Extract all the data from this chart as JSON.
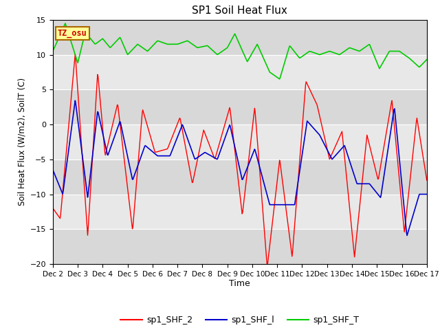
{
  "title": "SP1 Soil Heat Flux",
  "xlabel": "Time",
  "ylabel": "Soil Heat Flux (W/m2), SoilT (C)",
  "ylim": [
    -20,
    15
  ],
  "fig_bg_color": "#ffffff",
  "plot_bg_color": "#e8e8e8",
  "tz_label": "TZ_osu",
  "tz_box_color": "#ffff99",
  "tz_box_edge": "#aa6600",
  "tz_text_color": "#cc0000",
  "line_red": "#ff0000",
  "line_blue": "#0000cc",
  "line_green": "#00cc00",
  "legend_labels": [
    "sp1_SHF_2",
    "sp1_SHF_l",
    "sp1_SHF_T"
  ],
  "tick_labels": [
    "Dec 2",
    "Dec 3",
    "Dec 4",
    "Dec 5",
    "Dec 6",
    "Dec 7",
    "Dec 8",
    "Dec 9",
    "Dec 10",
    "Dec 11",
    "Dec 12",
    "Dec 13",
    "Dec 14",
    "Dec 15",
    "Dec 16",
    "Dec 17"
  ],
  "yticks": [
    -20,
    -15,
    -10,
    -5,
    0,
    5,
    10,
    15
  ],
  "grid_color": "#ffffff",
  "n_points": 720
}
